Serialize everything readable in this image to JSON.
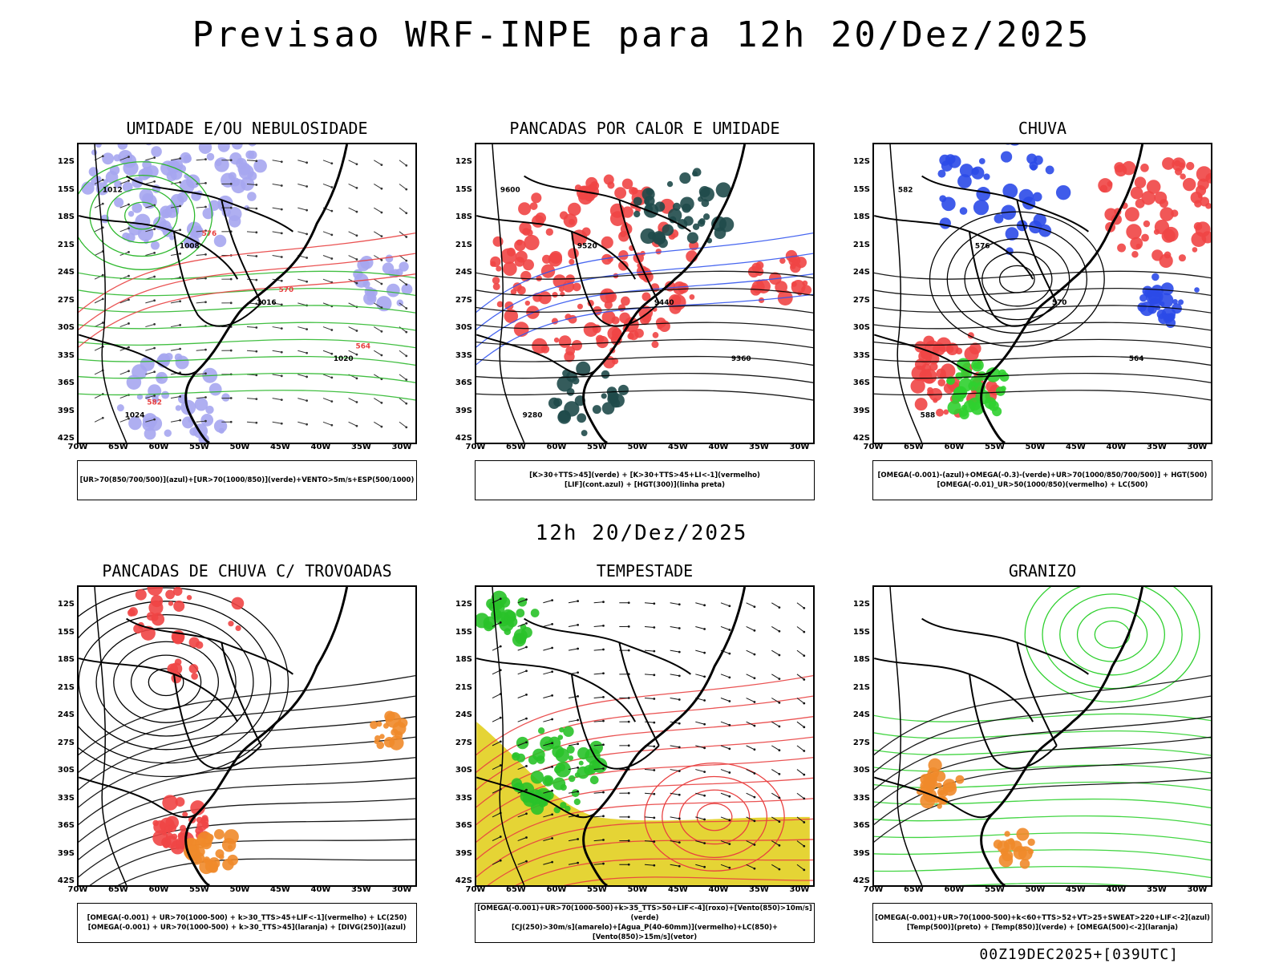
{
  "header": {
    "title": "Previsao WRF-INPE  para 12h 20/Dez/2025"
  },
  "middle_title": "12h 20/Dez/2025",
  "footer": "00Z19DEC2025+[039UTC]",
  "axes": {
    "lat_labels": [
      "12S",
      "15S",
      "18S",
      "21S",
      "24S",
      "27S",
      "30S",
      "33S",
      "36S",
      "39S",
      "42S"
    ],
    "lon_labels": [
      "70W",
      "65W",
      "60W",
      "55W",
      "50W",
      "45W",
      "40W",
      "35W",
      "30W"
    ]
  },
  "panels": [
    {
      "title": "UMIDADE E/OU NEBULOSIDADE",
      "legend": [
        "[UR>70(850/700/500)](azul)+[UR>70(1000/850)](verde)+VENTO>5m/s+ESP(500/1000)"
      ],
      "contour_labels": [
        "1012",
        "1008",
        "1016",
        "1020",
        "1024",
        "576",
        "570",
        "564",
        "582"
      ]
    },
    {
      "title": "PANCADAS POR CALOR E UMIDADE",
      "legend": [
        "[K>30+TTS>45](verde) + [K>30+TTS>45+LI<-1](vermelho)",
        "[LIF](cont.azul) + [HGT(300)](linha preta)"
      ],
      "contour_labels": [
        "9600",
        "9520",
        "9440",
        "9360",
        "9280"
      ]
    },
    {
      "title": "CHUVA",
      "legend": [
        "[OMEGA(-0.001)-(azul)+OMEGA(-0.3)-(verde)+UR>70(1000/850/700/500)] + HGT(500)",
        "[OMEGA(-0.01)_UR>50(1000/850)(vermelho) + LC(500)"
      ],
      "contour_labels": [
        "582",
        "576",
        "570",
        "564",
        "588"
      ]
    },
    {
      "title": "PANCADAS DE CHUVA C/ TROVOADAS",
      "legend": [
        "[OMEGA(-0.001) + UR>70(1000-500) + k>30_TTS>45+LIF<-1](vermelho) + LC(250)",
        "[OMEGA(-0.001) + UR>70(1000-500) + k>30_TTS>45](laranja) + [DIVG(250)](azul)"
      ],
      "contour_labels": []
    },
    {
      "title": "TEMPESTADE",
      "legend": [
        "[OMEGA(-0.001)+UR>70(1000-500)+k>35_TTS>50+LIF<-4](roxo)+[Vento(850)>10m/s](verde)",
        "[CJ(250)>30m/s](amarelo)+[Agua_P(40-60mm)](vermelho)+LC(850)+[Vento(850)>15m/s](vetor)"
      ],
      "contour_labels": []
    },
    {
      "title": "GRANIZO",
      "legend": [
        "[OMEGA(-0.001)+UR>70(1000-500)+k<60+TTS>52+VT>25+SWEAT>220+LIF<-2](azul)",
        "[Temp(500)](preto) + [Temp(850)](verde) + [OMEGA(500)<-2](laranja)"
      ],
      "contour_labels": []
    }
  ]
}
